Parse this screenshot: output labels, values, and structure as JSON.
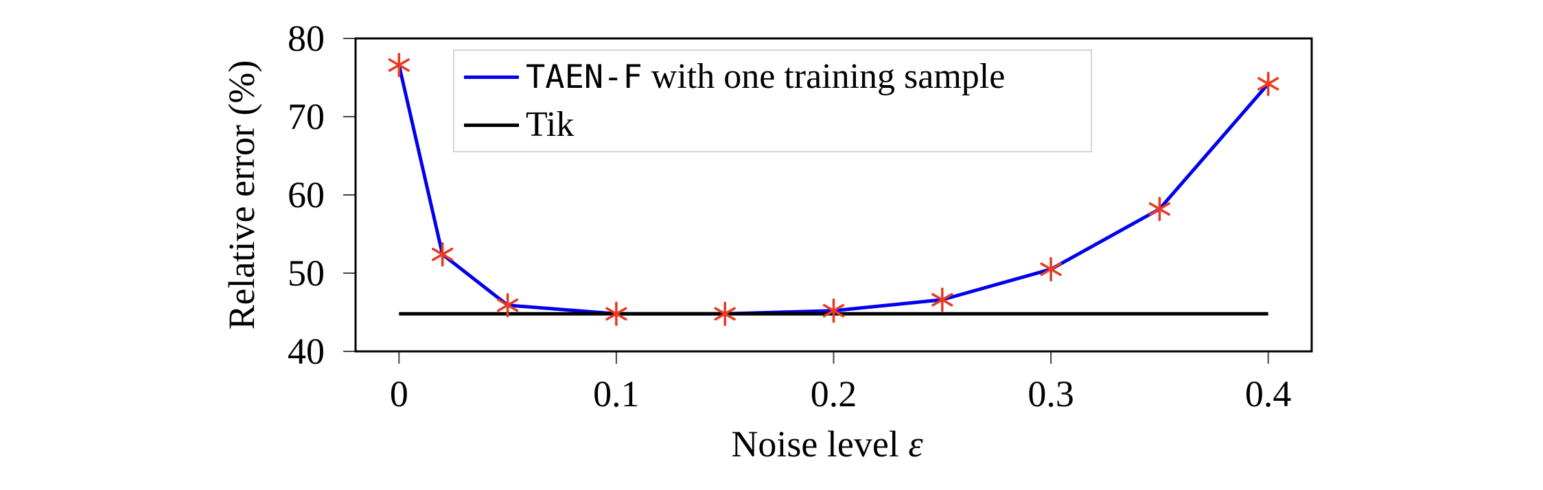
{
  "figure": {
    "background": "#ffffff"
  },
  "chart_data": {
    "type": "line",
    "title": "",
    "xlabel": "Noise level ε",
    "xlabel_text": "Noise level ",
    "xlabel_symbol": "ε",
    "ylabel": "Relative error (%)",
    "xlim": [
      -0.02,
      0.42
    ],
    "ylim": [
      40,
      80
    ],
    "grid": false,
    "legend_position": "top-left-inside",
    "xticks": {
      "values": [
        0,
        0.1,
        0.2,
        0.3,
        0.4
      ],
      "labels": [
        "0",
        "0.1",
        "0.2",
        "0.3",
        "0.4"
      ]
    },
    "yticks": {
      "values": [
        40,
        50,
        60,
        70,
        80
      ],
      "labels": [
        "40",
        "50",
        "60",
        "70",
        "80"
      ]
    },
    "series": [
      {
        "name": "TAEN-F with one training sample",
        "color": "#0000ee",
        "marker": "asterisk",
        "marker_color": "#e73b24",
        "x": [
          0,
          0.02,
          0.05,
          0.1,
          0.15,
          0.2,
          0.25,
          0.3,
          0.35,
          0.4
        ],
        "y": [
          76.6,
          52.4,
          45.9,
          44.8,
          44.8,
          45.2,
          46.6,
          50.5,
          58.2,
          74.2
        ]
      },
      {
        "name": "Tik",
        "color": "#000000",
        "marker": "none",
        "x": [
          0,
          0.4
        ],
        "y": [
          44.8,
          44.8
        ]
      }
    ]
  },
  "legend": {
    "items": [
      {
        "sample_color": "#0000ee",
        "label_mono": "TAEN-F",
        "label_rest": " with one training sample"
      },
      {
        "sample_color": "#000000",
        "label": "Tik"
      }
    ]
  }
}
